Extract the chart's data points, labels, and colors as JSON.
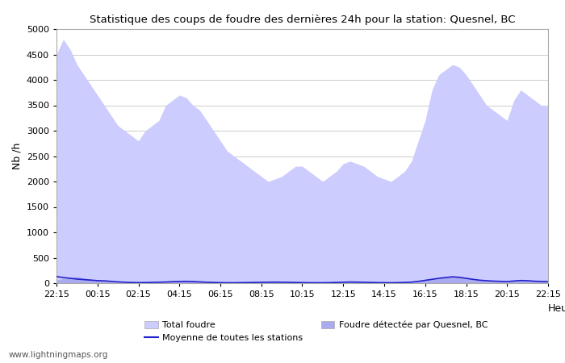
{
  "title": "Statistique des coups de foudre des dernières 24h pour la station: Quesnel, BC",
  "ylabel": "Nb /h",
  "heure_label": "Heure",
  "ylim": [
    0,
    5000
  ],
  "xtick_labels": [
    "22:15",
    "00:15",
    "02:15",
    "04:15",
    "06:15",
    "08:15",
    "10:15",
    "12:15",
    "14:15",
    "16:15",
    "18:15",
    "20:15",
    "22:15"
  ],
  "background_color": "#ffffff",
  "plot_bg_color": "#ffffff",
  "grid_color": "#cccccc",
  "fill_total_color": "#ccccff",
  "fill_station_color": "#aaaaee",
  "line_color": "#2222cc",
  "watermark": "www.lightningmaps.org",
  "legend_labels": [
    "Total foudre",
    "Moyenne de toutes les stations",
    "Foudre détectée par Quesnel, BC"
  ],
  "total_foudre": [
    4500,
    4800,
    4600,
    4300,
    4100,
    3900,
    3700,
    3500,
    3300,
    3100,
    3000,
    2900,
    2800,
    3000,
    3100,
    3200,
    3500,
    3600,
    3700,
    3650,
    3500,
    3400,
    3200,
    3000,
    2800,
    2600,
    2500,
    2400,
    2300,
    2200,
    2100,
    2000,
    2050,
    2100,
    2200,
    2300,
    2300,
    2200,
    2100,
    2000,
    2100,
    2200,
    2350,
    2400,
    2350,
    2300,
    2200,
    2100,
    2050,
    2000,
    2100,
    2200,
    2400,
    2800,
    3200,
    3800,
    4100,
    4200,
    4300,
    4250,
    4100,
    3900,
    3700,
    3500,
    3400,
    3300,
    3200,
    3600,
    3800,
    3700,
    3600,
    3500,
    3500
  ],
  "station_foudre": [
    60,
    90,
    110,
    130,
    100,
    80,
    60,
    40,
    30,
    20,
    15,
    10,
    8,
    10,
    15,
    20,
    30,
    40,
    50,
    55,
    45,
    35,
    25,
    15,
    10,
    8,
    8,
    10,
    12,
    15,
    18,
    20,
    22,
    20,
    18,
    15,
    12,
    10,
    8,
    8,
    10,
    15,
    20,
    25,
    22,
    18,
    15,
    12,
    10,
    8,
    10,
    15,
    25,
    40,
    60,
    80,
    100,
    120,
    130,
    120,
    100,
    80,
    60,
    50,
    40,
    35,
    30,
    45,
    55,
    50,
    40,
    35,
    30
  ],
  "moyenne": [
    130,
    110,
    95,
    80,
    70,
    60,
    50,
    45,
    35,
    25,
    18,
    12,
    10,
    12,
    15,
    18,
    22,
    28,
    32,
    35,
    30,
    25,
    18,
    13,
    10,
    8,
    8,
    10,
    12,
    14,
    16,
    18,
    20,
    18,
    16,
    13,
    11,
    9,
    8,
    8,
    10,
    14,
    18,
    22,
    20,
    17,
    14,
    11,
    9,
    8,
    10,
    14,
    20,
    35,
    55,
    75,
    95,
    110,
    125,
    115,
    95,
    75,
    58,
    48,
    40,
    35,
    30,
    42,
    52,
    48,
    38,
    33,
    28
  ]
}
